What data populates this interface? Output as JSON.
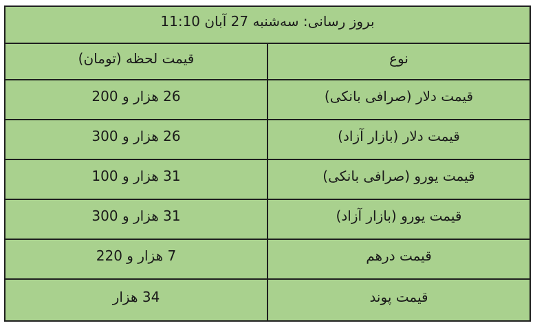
{
  "colors": {
    "page_background": "#ffffff",
    "cell_background": "#a9d18e",
    "border": "#1f1f1f",
    "text": "#1a1a1a"
  },
  "table": {
    "update_header": "بروز رسانی: سه‌شنبه 27  آبان 11:10",
    "columns": {
      "type": "نوع",
      "price": "قیمت لحظه (تومان)"
    },
    "rows": [
      {
        "type": "قیمت دلار (صرافی بانکی)",
        "price": "26 هزار و 200"
      },
      {
        "type": "قیمت دلار (بازار آزاد)",
        "price": "26 هزار و 300"
      },
      {
        "type": "قیمت یورو (صرافی بانکی)",
        "price": "31 هزار و 100"
      },
      {
        "type": "قیمت یورو (بازار آزاد)",
        "price": "31 هزار و 300"
      },
      {
        "type": "قیمت درهم",
        "price": "7 هزار و 220"
      },
      {
        "type": "قیمت پوند",
        "price": "34 هزار"
      }
    ]
  },
  "chart_data": {
    "type": "table",
    "title": "بروز رسانی: سه‌شنبه 27  آبان 11:10",
    "columns": [
      "نوع",
      "قیمت لحظه (تومان)"
    ],
    "rows": [
      [
        "قیمت دلار (صرافی بانکی)",
        "26 هزار و 200"
      ],
      [
        "قیمت دلار (بازار آزاد)",
        "26 هزار و 300"
      ],
      [
        "قیمت یورو (صرافی بانکی)",
        "31 هزار و 100"
      ],
      [
        "قیمت یورو (بازار آزاد)",
        "31 هزار و 300"
      ],
      [
        "قیمت درهم",
        "7 هزار و 220"
      ],
      [
        "قیمت پوند",
        "34 هزار"
      ]
    ],
    "values_numeric_toman": {
      "dollar_bank_exchange": 26200,
      "dollar_free_market": 26300,
      "euro_bank_exchange": 31100,
      "euro_free_market": 31300,
      "dirham": 7220,
      "pound": 34000
    },
    "layout": {
      "direction": "rtl",
      "grid": "on",
      "header_row_merged": true
    }
  }
}
